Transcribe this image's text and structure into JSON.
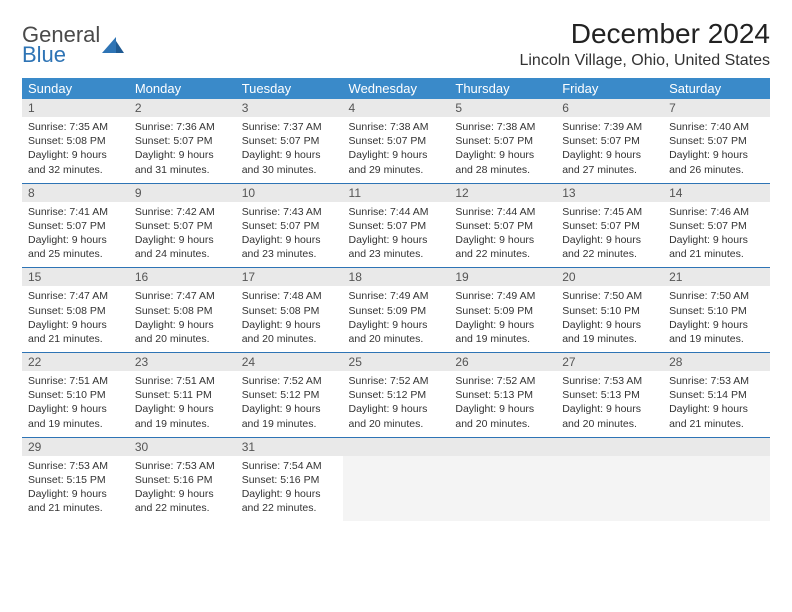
{
  "logo": {
    "general": "General",
    "blue": "Blue"
  },
  "title": "December 2024",
  "location": "Lincoln Village, Ohio, United States",
  "colors": {
    "header_bg": "#3a8ac9",
    "header_text": "#ffffff",
    "daynum_bg": "#e9e9e9",
    "week_divider": "#2e74b5",
    "body_text": "#333333",
    "logo_blue": "#2e74b5"
  },
  "dows": [
    "Sunday",
    "Monday",
    "Tuesday",
    "Wednesday",
    "Thursday",
    "Friday",
    "Saturday"
  ],
  "weeks": [
    [
      {
        "n": "1",
        "sr": "Sunrise: 7:35 AM",
        "ss": "Sunset: 5:08 PM",
        "d1": "Daylight: 9 hours",
        "d2": "and 32 minutes."
      },
      {
        "n": "2",
        "sr": "Sunrise: 7:36 AM",
        "ss": "Sunset: 5:07 PM",
        "d1": "Daylight: 9 hours",
        "d2": "and 31 minutes."
      },
      {
        "n": "3",
        "sr": "Sunrise: 7:37 AM",
        "ss": "Sunset: 5:07 PM",
        "d1": "Daylight: 9 hours",
        "d2": "and 30 minutes."
      },
      {
        "n": "4",
        "sr": "Sunrise: 7:38 AM",
        "ss": "Sunset: 5:07 PM",
        "d1": "Daylight: 9 hours",
        "d2": "and 29 minutes."
      },
      {
        "n": "5",
        "sr": "Sunrise: 7:38 AM",
        "ss": "Sunset: 5:07 PM",
        "d1": "Daylight: 9 hours",
        "d2": "and 28 minutes."
      },
      {
        "n": "6",
        "sr": "Sunrise: 7:39 AM",
        "ss": "Sunset: 5:07 PM",
        "d1": "Daylight: 9 hours",
        "d2": "and 27 minutes."
      },
      {
        "n": "7",
        "sr": "Sunrise: 7:40 AM",
        "ss": "Sunset: 5:07 PM",
        "d1": "Daylight: 9 hours",
        "d2": "and 26 minutes."
      }
    ],
    [
      {
        "n": "8",
        "sr": "Sunrise: 7:41 AM",
        "ss": "Sunset: 5:07 PM",
        "d1": "Daylight: 9 hours",
        "d2": "and 25 minutes."
      },
      {
        "n": "9",
        "sr": "Sunrise: 7:42 AM",
        "ss": "Sunset: 5:07 PM",
        "d1": "Daylight: 9 hours",
        "d2": "and 24 minutes."
      },
      {
        "n": "10",
        "sr": "Sunrise: 7:43 AM",
        "ss": "Sunset: 5:07 PM",
        "d1": "Daylight: 9 hours",
        "d2": "and 23 minutes."
      },
      {
        "n": "11",
        "sr": "Sunrise: 7:44 AM",
        "ss": "Sunset: 5:07 PM",
        "d1": "Daylight: 9 hours",
        "d2": "and 23 minutes."
      },
      {
        "n": "12",
        "sr": "Sunrise: 7:44 AM",
        "ss": "Sunset: 5:07 PM",
        "d1": "Daylight: 9 hours",
        "d2": "and 22 minutes."
      },
      {
        "n": "13",
        "sr": "Sunrise: 7:45 AM",
        "ss": "Sunset: 5:07 PM",
        "d1": "Daylight: 9 hours",
        "d2": "and 22 minutes."
      },
      {
        "n": "14",
        "sr": "Sunrise: 7:46 AM",
        "ss": "Sunset: 5:07 PM",
        "d1": "Daylight: 9 hours",
        "d2": "and 21 minutes."
      }
    ],
    [
      {
        "n": "15",
        "sr": "Sunrise: 7:47 AM",
        "ss": "Sunset: 5:08 PM",
        "d1": "Daylight: 9 hours",
        "d2": "and 21 minutes."
      },
      {
        "n": "16",
        "sr": "Sunrise: 7:47 AM",
        "ss": "Sunset: 5:08 PM",
        "d1": "Daylight: 9 hours",
        "d2": "and 20 minutes."
      },
      {
        "n": "17",
        "sr": "Sunrise: 7:48 AM",
        "ss": "Sunset: 5:08 PM",
        "d1": "Daylight: 9 hours",
        "d2": "and 20 minutes."
      },
      {
        "n": "18",
        "sr": "Sunrise: 7:49 AM",
        "ss": "Sunset: 5:09 PM",
        "d1": "Daylight: 9 hours",
        "d2": "and 20 minutes."
      },
      {
        "n": "19",
        "sr": "Sunrise: 7:49 AM",
        "ss": "Sunset: 5:09 PM",
        "d1": "Daylight: 9 hours",
        "d2": "and 19 minutes."
      },
      {
        "n": "20",
        "sr": "Sunrise: 7:50 AM",
        "ss": "Sunset: 5:10 PM",
        "d1": "Daylight: 9 hours",
        "d2": "and 19 minutes."
      },
      {
        "n": "21",
        "sr": "Sunrise: 7:50 AM",
        "ss": "Sunset: 5:10 PM",
        "d1": "Daylight: 9 hours",
        "d2": "and 19 minutes."
      }
    ],
    [
      {
        "n": "22",
        "sr": "Sunrise: 7:51 AM",
        "ss": "Sunset: 5:10 PM",
        "d1": "Daylight: 9 hours",
        "d2": "and 19 minutes."
      },
      {
        "n": "23",
        "sr": "Sunrise: 7:51 AM",
        "ss": "Sunset: 5:11 PM",
        "d1": "Daylight: 9 hours",
        "d2": "and 19 minutes."
      },
      {
        "n": "24",
        "sr": "Sunrise: 7:52 AM",
        "ss": "Sunset: 5:12 PM",
        "d1": "Daylight: 9 hours",
        "d2": "and 19 minutes."
      },
      {
        "n": "25",
        "sr": "Sunrise: 7:52 AM",
        "ss": "Sunset: 5:12 PM",
        "d1": "Daylight: 9 hours",
        "d2": "and 20 minutes."
      },
      {
        "n": "26",
        "sr": "Sunrise: 7:52 AM",
        "ss": "Sunset: 5:13 PM",
        "d1": "Daylight: 9 hours",
        "d2": "and 20 minutes."
      },
      {
        "n": "27",
        "sr": "Sunrise: 7:53 AM",
        "ss": "Sunset: 5:13 PM",
        "d1": "Daylight: 9 hours",
        "d2": "and 20 minutes."
      },
      {
        "n": "28",
        "sr": "Sunrise: 7:53 AM",
        "ss": "Sunset: 5:14 PM",
        "d1": "Daylight: 9 hours",
        "d2": "and 21 minutes."
      }
    ],
    [
      {
        "n": "29",
        "sr": "Sunrise: 7:53 AM",
        "ss": "Sunset: 5:15 PM",
        "d1": "Daylight: 9 hours",
        "d2": "and 21 minutes."
      },
      {
        "n": "30",
        "sr": "Sunrise: 7:53 AM",
        "ss": "Sunset: 5:16 PM",
        "d1": "Daylight: 9 hours",
        "d2": "and 22 minutes."
      },
      {
        "n": "31",
        "sr": "Sunrise: 7:54 AM",
        "ss": "Sunset: 5:16 PM",
        "d1": "Daylight: 9 hours",
        "d2": "and 22 minutes."
      },
      null,
      null,
      null,
      null
    ]
  ]
}
